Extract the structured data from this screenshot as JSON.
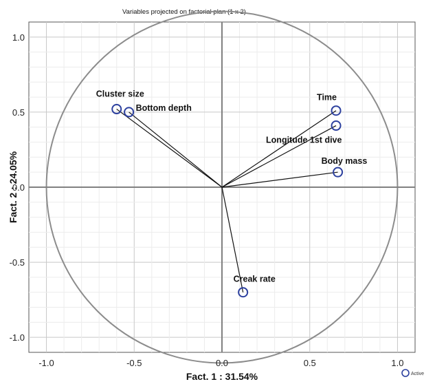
{
  "chart_data": {
    "type": "scatter",
    "title": "Variables projected on factorial plan (1 x 2)",
    "xlabel": "Fact. 1  : 31.54%",
    "ylabel": "Fact. 2  : 24.05%",
    "xlim": [
      -1.1,
      1.1
    ],
    "ylim": [
      -1.1,
      1.1
    ],
    "x_ticks": [
      "-1.0",
      "-0.5",
      "0.0",
      "0.5",
      "1.0"
    ],
    "y_ticks": [
      "1.0",
      "0.5",
      "0.0",
      "-0.5",
      "-1.0"
    ],
    "grid": true,
    "legend_position": "bottom-right",
    "legend": "Active",
    "marker_color": "#2b3f9e",
    "circle_color": "#8c8c8c",
    "series": [
      {
        "points": [
          {
            "label": "Cluster size",
            "x": -0.6,
            "y": 0.52
          },
          {
            "label": "Bottom depth",
            "x": -0.53,
            "y": 0.5
          },
          {
            "label": "Time",
            "x": 0.65,
            "y": 0.51
          },
          {
            "label": "Longitude 1st dive",
            "x": 0.65,
            "y": 0.41
          },
          {
            "label": "Body mass",
            "x": 0.66,
            "y": 0.1
          },
          {
            "label": "Creak rate",
            "x": 0.12,
            "y": -0.7
          }
        ]
      }
    ]
  }
}
